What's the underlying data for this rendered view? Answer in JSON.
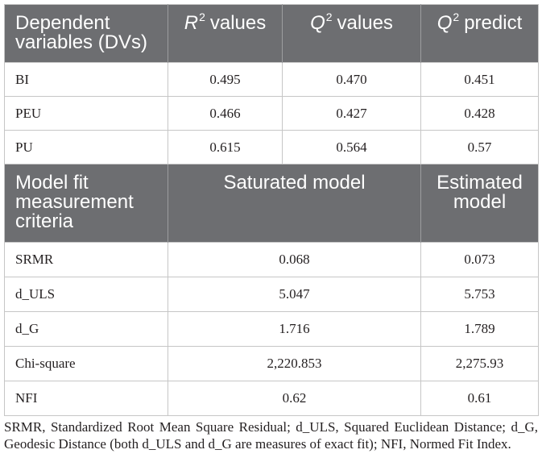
{
  "table": {
    "header_row_1": {
      "dependent_variables": "Dependent variables (DVs)",
      "r2": {
        "symbol": "R",
        "superscript": "2",
        "label": "values"
      },
      "q2": {
        "symbol": "Q",
        "superscript": "2",
        "label": "values"
      },
      "q2_predict": {
        "symbol": "Q",
        "superscript": "2",
        "label": "predict"
      }
    },
    "dv_rows": [
      {
        "name": "BI",
        "r2": "0.495",
        "q2": "0.470",
        "q2_predict": "0.451"
      },
      {
        "name": "PEU",
        "r2": "0.466",
        "q2": "0.427",
        "q2_predict": "0.428"
      },
      {
        "name": "PU",
        "r2": "0.615",
        "q2": "0.564",
        "q2_predict": "0.57"
      }
    ],
    "header_row_2": {
      "criteria": "Model fit measurement criteria",
      "saturated": "Saturated model",
      "estimated": "Estimated model"
    },
    "fit_rows": [
      {
        "name": "SRMR",
        "saturated": "0.068",
        "estimated": "0.073"
      },
      {
        "name": "d_ULS",
        "saturated": "5.047",
        "estimated": "5.753"
      },
      {
        "name": "d_G",
        "saturated": "1.716",
        "estimated": "1.789"
      },
      {
        "name": "Chi-square",
        "saturated": "2,220.853",
        "estimated": "2,275.93"
      },
      {
        "name": "NFI",
        "saturated": "0.62",
        "estimated": "0.61"
      }
    ]
  },
  "footnote": "SRMR, Standardized Root Mean Square Residual; d_ULS, Squared Euclidean Distance; d_G, Geodesic Distance (both d_ULS and d_G are measures of exact fit); NFI, Normed Fit Index.",
  "colors": {
    "header_background": "#6d6e71",
    "header_text": "#ffffff",
    "header_divider": "#9c9d9f",
    "border": "#c6c6c6",
    "body_text": "#231f20"
  }
}
